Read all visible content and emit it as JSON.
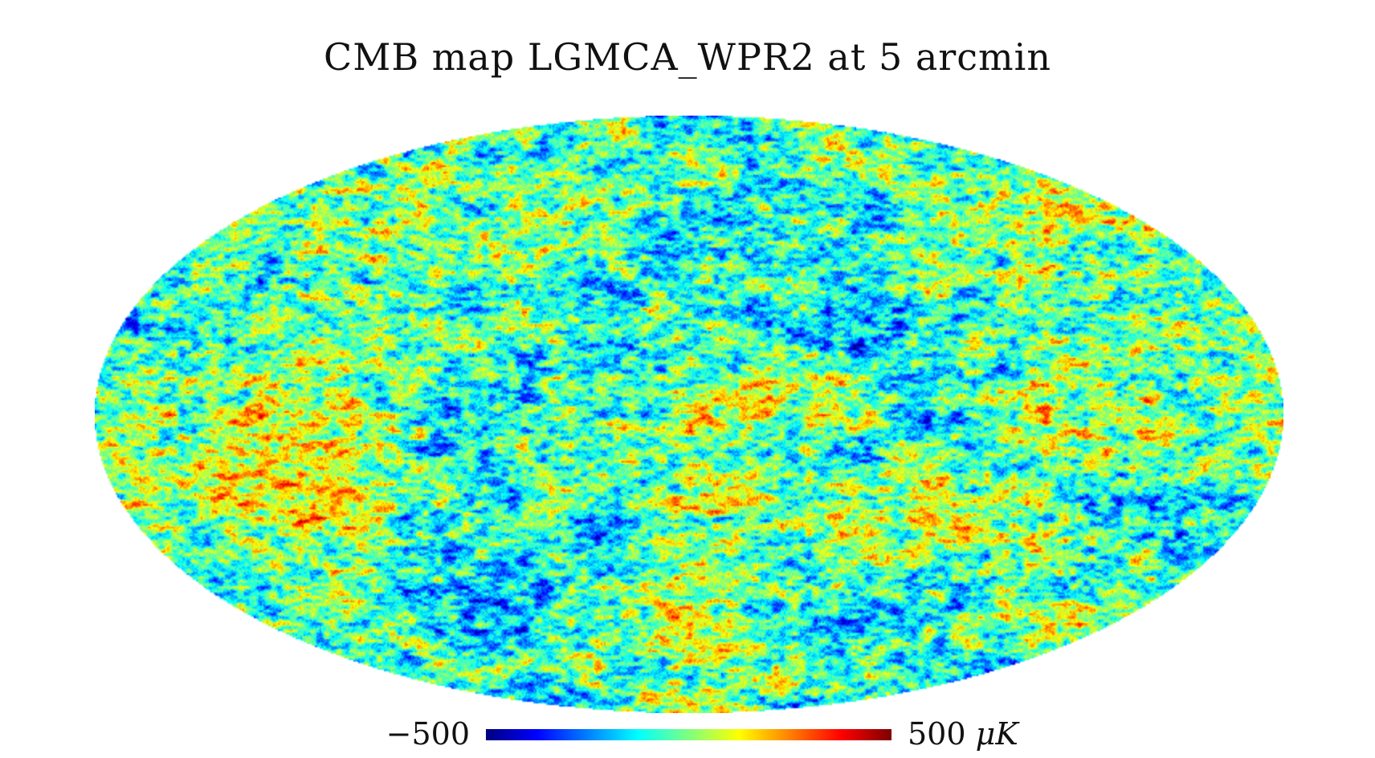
{
  "title": "CMB map LGMCA_WPR2 at 5 arcmin",
  "map": {
    "projection": "mollweide",
    "description_kind": "full-sky temperature anisotropy map",
    "colormap": [
      "#00007f",
      "#0000ff",
      "#007fff",
      "#00ffff",
      "#7fff7f",
      "#ffff00",
      "#ff7f00",
      "#ff0000",
      "#7f0000"
    ]
  },
  "colorbar": {
    "min_label": "−500",
    "max_label": "500",
    "unit_label": "μK",
    "min_value": -500,
    "max_value": 500
  }
}
